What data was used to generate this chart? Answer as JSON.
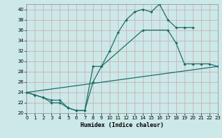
{
  "xlabel": "Humidex (Indice chaleur)",
  "xlim": [
    0,
    23
  ],
  "ylim": [
    20,
    41
  ],
  "yticks": [
    20,
    22,
    24,
    26,
    28,
    30,
    32,
    34,
    36,
    38,
    40
  ],
  "xticks": [
    0,
    1,
    2,
    3,
    4,
    5,
    6,
    7,
    8,
    9,
    10,
    11,
    12,
    13,
    14,
    15,
    16,
    17,
    18,
    19,
    20,
    21,
    22,
    23
  ],
  "bg_color": "#cce8e8",
  "grid_color": "#c8a8a8",
  "line_color": "#1a6e68",
  "curve1_x": [
    0,
    1,
    2,
    3,
    4,
    5,
    6,
    7,
    8,
    9,
    10,
    11,
    12,
    13,
    14,
    15,
    16,
    17,
    18,
    19,
    20
  ],
  "curve1_y": [
    24,
    23.5,
    23,
    22.5,
    22.5,
    21,
    20.5,
    20.5,
    29,
    29,
    32,
    35.5,
    38,
    39.5,
    40,
    39.5,
    41,
    38,
    36.5,
    36.5,
    36.5
  ],
  "curve2_x": [
    0,
    23
  ],
  "curve2_y": [
    24,
    29
  ],
  "curve3_x": [
    0,
    1,
    2,
    3,
    4,
    5,
    6,
    7,
    8,
    9,
    14,
    17,
    18,
    19,
    20,
    21,
    22,
    23
  ],
  "curve3_y": [
    24,
    23.5,
    23,
    22,
    22,
    21,
    20.5,
    20.5,
    26,
    29,
    36,
    36,
    33.5,
    29.5,
    29.5,
    29.5,
    29.5,
    29
  ]
}
